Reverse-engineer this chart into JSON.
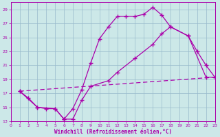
{
  "xlabel": "Windchill (Refroidissement éolien,°C)",
  "bg_color": "#cce8e8",
  "line_color": "#aa00aa",
  "grid_color": "#99bbcc",
  "xlim": [
    0,
    23
  ],
  "ylim": [
    13,
    30
  ],
  "yticks": [
    13,
    15,
    17,
    19,
    21,
    23,
    25,
    27,
    29
  ],
  "xticks": [
    0,
    1,
    2,
    3,
    4,
    5,
    6,
    7,
    8,
    9,
    10,
    11,
    12,
    13,
    14,
    15,
    16,
    17,
    18,
    19,
    20,
    21,
    22,
    23
  ],
  "line1_x": [
    1,
    2,
    3,
    4,
    5,
    6,
    7,
    8,
    9,
    10,
    11,
    12,
    13,
    14,
    15,
    16,
    17,
    18,
    20,
    21,
    22,
    23
  ],
  "line1_y": [
    17.3,
    16.3,
    15.0,
    14.8,
    14.8,
    13.3,
    14.8,
    17.5,
    21.3,
    24.8,
    26.5,
    28.0,
    28.0,
    28.0,
    28.3,
    29.3,
    28.2,
    26.5,
    25.2,
    23.0,
    21.0,
    19.3
  ],
  "line2_x": [
    1,
    3,
    5,
    6,
    7,
    8,
    9,
    11,
    12,
    14,
    16,
    17,
    18,
    20,
    22,
    23
  ],
  "line2_y": [
    17.3,
    15.0,
    14.8,
    13.3,
    13.3,
    16.0,
    18.0,
    18.8,
    20.0,
    22.0,
    24.0,
    25.5,
    26.5,
    25.2,
    19.3,
    19.3
  ],
  "line3_x": [
    1,
    23
  ],
  "line3_y": [
    17.3,
    19.3
  ]
}
